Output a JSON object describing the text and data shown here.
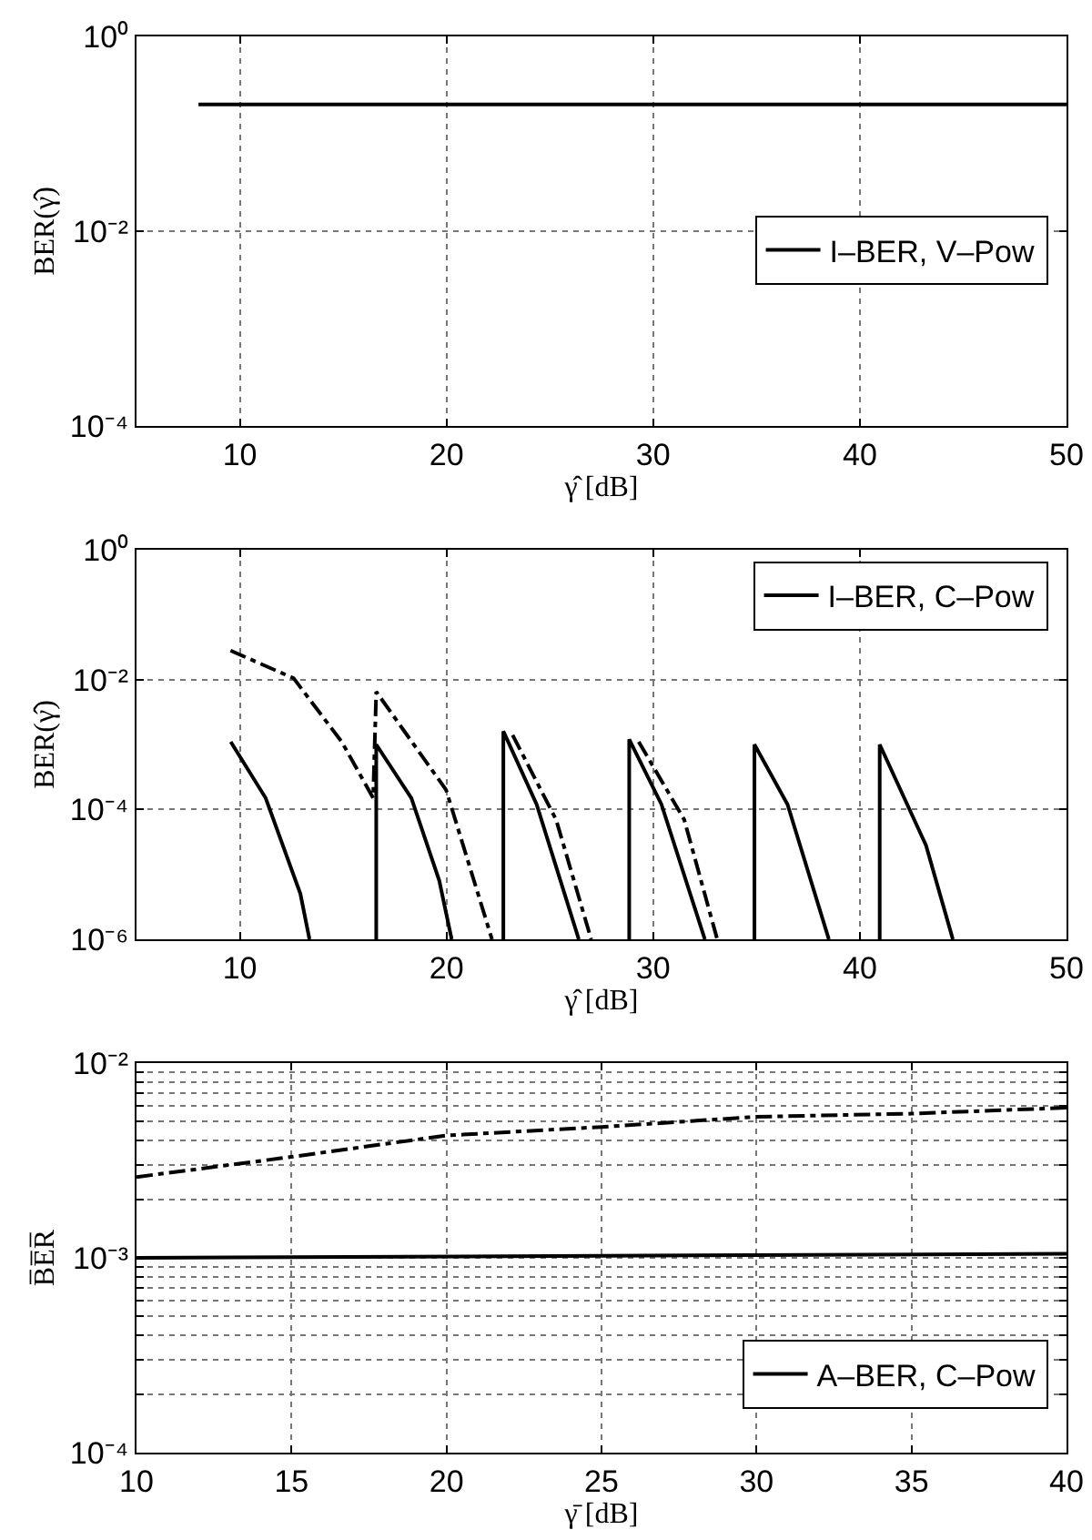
{
  "chart_data": [
    {
      "type": "line",
      "xlabel": "γ̂ [dB]",
      "ylabel": "BER(γ̂)",
      "log": "y",
      "grid": true,
      "legend": "right",
      "xlim": [
        5,
        50
      ],
      "xticks": [
        10,
        20,
        30,
        40,
        50
      ],
      "ylim": [
        0.0001,
        1
      ],
      "yticks": [
        {
          "value": 0.0001,
          "label": "10⁻⁴"
        },
        {
          "value": 0.01,
          "label": "10⁻²"
        },
        {
          "value": 1,
          "label": "10⁰"
        }
      ],
      "series": [
        {
          "name": "I–BER, V–Pow",
          "color": "#000000",
          "line_style": "solid",
          "x": [
            8,
            50
          ],
          "values": [
            0.2,
            0.2
          ]
        }
      ]
    },
    {
      "type": "line",
      "xlabel": "γ̂ [dB]",
      "ylabel": "BER(γ̂)",
      "log": "y",
      "grid": true,
      "legend": "top right",
      "xlim": [
        5,
        50
      ],
      "xticks": [
        10,
        20,
        30,
        40,
        50
      ],
      "ylim": [
        1e-06,
        1
      ],
      "yticks": [
        {
          "value": 1e-06,
          "label": "10⁻⁶"
        },
        {
          "value": 0.0001,
          "label": "10⁻⁴"
        },
        {
          "value": 0.01,
          "label": "10⁻²"
        },
        {
          "value": 1,
          "label": "10⁰"
        }
      ],
      "series": [
        {
          "name": "I–BER, C–Pow",
          "color": "#000000",
          "line_style": "solid",
          "x": [
            9.56,
            11.25,
            12.93,
            13.37,
            13.5,
            16.6,
            16.6,
            18.3,
            19.65,
            20.25,
            20.5,
            22.75,
            22.75,
            24.36,
            26.4,
            26.6,
            28.84,
            28.84,
            30.4,
            32.5,
            32.7,
            34.9,
            34.9,
            36.5,
            38.5,
            38.7,
            40.96,
            40.96,
            43.2,
            44.5
          ],
          "values": [
            0.0011,
            0.00015,
            5e-06,
            1e-06,
            null,
            1e-06,
            0.001,
            0.00015,
            8e-06,
            1e-06,
            null,
            1e-06,
            0.0016,
            0.00012,
            1e-06,
            null,
            1e-06,
            0.0012,
            0.00012,
            1e-06,
            null,
            1e-06,
            0.001,
            0.00012,
            1e-06,
            null,
            1e-06,
            0.001,
            2.8e-05,
            1e-06
          ]
        },
        {
          "color": "#000000",
          "line_style": "dashdot",
          "x": [
            9.55,
            12.6,
            14.93,
            16.45,
            16.6,
            19.98,
            22.2,
            22.5,
            23.2,
            25.3,
            27.0,
            27.3,
            29.3,
            31.5,
            33.1
          ],
          "values": [
            0.028,
            0.0105,
            0.0011,
            0.00015,
            0.0065,
            0.0002,
            1e-06,
            null,
            0.0014,
            7e-05,
            1e-06,
            null,
            0.0011,
            7e-05,
            1e-06
          ]
        }
      ]
    },
    {
      "type": "line",
      "xlabel": "γ̄ [dB]",
      "ylabel": "B̅E̅R̅",
      "log": "y",
      "grid": true,
      "legend": "bottom right",
      "xlim": [
        10,
        40
      ],
      "xticks": [
        10,
        15,
        20,
        25,
        30,
        35,
        40
      ],
      "ylim": [
        0.0001,
        0.01
      ],
      "yticks": [
        {
          "value": 0.0001,
          "label": "10⁻⁴"
        },
        {
          "value": 0.0002,
          "label": null
        },
        {
          "value": 0.0003,
          "label": null
        },
        {
          "value": 0.0004,
          "label": null
        },
        {
          "value": 0.0005,
          "label": null
        },
        {
          "value": 0.0006,
          "label": null
        },
        {
          "value": 0.0007,
          "label": null
        },
        {
          "value": 0.0008,
          "label": null
        },
        {
          "value": 0.0009,
          "label": null
        },
        {
          "value": 0.001,
          "label": "10⁻³"
        },
        {
          "value": 0.002,
          "label": null
        },
        {
          "value": 0.003,
          "label": null
        },
        {
          "value": 0.004,
          "label": null
        },
        {
          "value": 0.005,
          "label": null
        },
        {
          "value": 0.006,
          "label": null
        },
        {
          "value": 0.007,
          "label": null
        },
        {
          "value": 0.008,
          "label": null
        },
        {
          "value": 0.009,
          "label": null
        },
        {
          "value": 0.01,
          "label": "10⁻²"
        }
      ],
      "series": [
        {
          "name": "A–BER, C–Pow",
          "color": "#000000",
          "line_style": "solid",
          "x": [
            10,
            40
          ],
          "values": [
            0.001,
            0.00105
          ]
        },
        {
          "color": "#000000",
          "line_style": "dashdot",
          "x": [
            10,
            15,
            20,
            25,
            30,
            35,
            40
          ],
          "values": [
            0.0026,
            0.0033,
            0.00425,
            0.0047,
            0.0053,
            0.0055,
            0.0059
          ]
        }
      ]
    }
  ]
}
